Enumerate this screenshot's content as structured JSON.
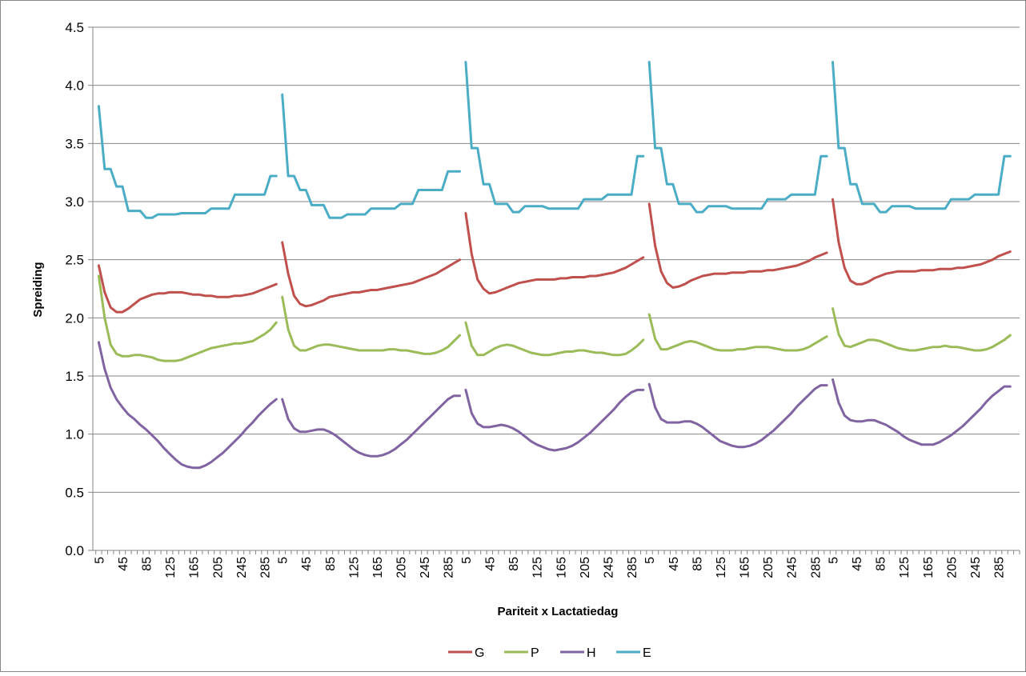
{
  "chart_data": {
    "type": "line",
    "title": "",
    "xlabel": "Pariteit x Lactatiedag",
    "ylabel": "Spreiding",
    "ylim": [
      0,
      4.5
    ],
    "yticks": [
      "0.0",
      "0.5",
      "1.0",
      "1.5",
      "2.0",
      "2.5",
      "3.0",
      "3.5",
      "4.0",
      "4.5"
    ],
    "x_tick_labels": [
      "5",
      "45",
      "85",
      "125",
      "165",
      "205",
      "245",
      "285"
    ],
    "grid": "horizontal",
    "legend_position": "bottom",
    "groups": 5,
    "days_per_group": [
      "5",
      "15",
      "25",
      "35",
      "45",
      "55",
      "65",
      "75",
      "85",
      "95",
      "105",
      "115",
      "125",
      "135",
      "145",
      "155",
      "165",
      "175",
      "185",
      "195",
      "205",
      "215",
      "225",
      "235",
      "245",
      "255",
      "265",
      "275",
      "285",
      "295",
      "305"
    ],
    "series": [
      {
        "name": "G",
        "color": "#c0504d",
        "segments": [
          [
            2.45,
            2.22,
            2.09,
            2.05,
            2.05,
            2.08,
            2.12,
            2.16,
            2.18,
            2.2,
            2.21,
            2.21,
            2.22,
            2.22,
            2.22,
            2.21,
            2.2,
            2.2,
            2.19,
            2.19,
            2.18,
            2.18,
            2.18,
            2.19,
            2.19,
            2.2,
            2.21,
            2.23,
            2.25,
            2.27,
            2.29
          ],
          [
            2.65,
            2.38,
            2.19,
            2.12,
            2.1,
            2.11,
            2.13,
            2.15,
            2.18,
            2.19,
            2.2,
            2.21,
            2.22,
            2.22,
            2.23,
            2.24,
            2.24,
            2.25,
            2.26,
            2.27,
            2.28,
            2.29,
            2.3,
            2.32,
            2.34,
            2.36,
            2.38,
            2.41,
            2.44,
            2.47,
            2.5
          ],
          [
            2.9,
            2.55,
            2.33,
            2.25,
            2.21,
            2.22,
            2.24,
            2.26,
            2.28,
            2.3,
            2.31,
            2.32,
            2.33,
            2.33,
            2.33,
            2.33,
            2.34,
            2.34,
            2.35,
            2.35,
            2.35,
            2.36,
            2.36,
            2.37,
            2.38,
            2.39,
            2.41,
            2.43,
            2.46,
            2.49,
            2.52
          ],
          [
            2.98,
            2.62,
            2.4,
            2.3,
            2.26,
            2.27,
            2.29,
            2.32,
            2.34,
            2.36,
            2.37,
            2.38,
            2.38,
            2.38,
            2.39,
            2.39,
            2.39,
            2.4,
            2.4,
            2.4,
            2.41,
            2.41,
            2.42,
            2.43,
            2.44,
            2.45,
            2.47,
            2.49,
            2.52,
            2.54,
            2.56
          ],
          [
            3.02,
            2.65,
            2.43,
            2.32,
            2.29,
            2.29,
            2.31,
            2.34,
            2.36,
            2.38,
            2.39,
            2.4,
            2.4,
            2.4,
            2.4,
            2.41,
            2.41,
            2.41,
            2.42,
            2.42,
            2.42,
            2.43,
            2.43,
            2.44,
            2.45,
            2.46,
            2.48,
            2.5,
            2.53,
            2.55,
            2.57
          ]
        ]
      },
      {
        "name": "P",
        "color": "#9bbb59",
        "segments": [
          [
            2.36,
            2.0,
            1.77,
            1.69,
            1.67,
            1.67,
            1.68,
            1.68,
            1.67,
            1.66,
            1.64,
            1.63,
            1.63,
            1.63,
            1.64,
            1.66,
            1.68,
            1.7,
            1.72,
            1.74,
            1.75,
            1.76,
            1.77,
            1.78,
            1.78,
            1.79,
            1.8,
            1.83,
            1.86,
            1.9,
            1.96
          ],
          [
            2.18,
            1.9,
            1.76,
            1.72,
            1.72,
            1.74,
            1.76,
            1.77,
            1.77,
            1.76,
            1.75,
            1.74,
            1.73,
            1.72,
            1.72,
            1.72,
            1.72,
            1.72,
            1.73,
            1.73,
            1.72,
            1.72,
            1.71,
            1.7,
            1.69,
            1.69,
            1.7,
            1.72,
            1.75,
            1.8,
            1.85
          ],
          [
            1.96,
            1.76,
            1.68,
            1.68,
            1.71,
            1.74,
            1.76,
            1.77,
            1.76,
            1.74,
            1.72,
            1.7,
            1.69,
            1.68,
            1.68,
            1.69,
            1.7,
            1.71,
            1.71,
            1.72,
            1.72,
            1.71,
            1.7,
            1.7,
            1.69,
            1.68,
            1.68,
            1.69,
            1.72,
            1.76,
            1.81
          ],
          [
            2.03,
            1.82,
            1.73,
            1.73,
            1.75,
            1.77,
            1.79,
            1.8,
            1.79,
            1.77,
            1.75,
            1.73,
            1.72,
            1.72,
            1.72,
            1.73,
            1.73,
            1.74,
            1.75,
            1.75,
            1.75,
            1.74,
            1.73,
            1.72,
            1.72,
            1.72,
            1.73,
            1.75,
            1.78,
            1.81,
            1.84
          ],
          [
            2.08,
            1.86,
            1.76,
            1.75,
            1.77,
            1.79,
            1.81,
            1.81,
            1.8,
            1.78,
            1.76,
            1.74,
            1.73,
            1.72,
            1.72,
            1.73,
            1.74,
            1.75,
            1.75,
            1.76,
            1.75,
            1.75,
            1.74,
            1.73,
            1.72,
            1.72,
            1.73,
            1.75,
            1.78,
            1.81,
            1.85
          ]
        ]
      },
      {
        "name": "H",
        "color": "#8064a2",
        "segments": [
          [
            1.79,
            1.56,
            1.4,
            1.3,
            1.23,
            1.17,
            1.13,
            1.08,
            1.04,
            0.99,
            0.94,
            0.88,
            0.83,
            0.78,
            0.74,
            0.72,
            0.71,
            0.71,
            0.73,
            0.76,
            0.8,
            0.84,
            0.89,
            0.94,
            0.99,
            1.05,
            1.1,
            1.16,
            1.21,
            1.26,
            1.3
          ],
          [
            1.3,
            1.13,
            1.05,
            1.02,
            1.02,
            1.03,
            1.04,
            1.04,
            1.02,
            0.99,
            0.95,
            0.91,
            0.87,
            0.84,
            0.82,
            0.81,
            0.81,
            0.82,
            0.84,
            0.87,
            0.91,
            0.95,
            1.0,
            1.05,
            1.1,
            1.15,
            1.2,
            1.25,
            1.3,
            1.33,
            1.33
          ],
          [
            1.38,
            1.18,
            1.09,
            1.06,
            1.06,
            1.07,
            1.08,
            1.07,
            1.05,
            1.02,
            0.98,
            0.94,
            0.91,
            0.89,
            0.87,
            0.86,
            0.87,
            0.88,
            0.9,
            0.93,
            0.97,
            1.01,
            1.06,
            1.11,
            1.16,
            1.21,
            1.27,
            1.32,
            1.36,
            1.38,
            1.38
          ],
          [
            1.43,
            1.23,
            1.13,
            1.1,
            1.1,
            1.1,
            1.11,
            1.11,
            1.09,
            1.06,
            1.02,
            0.98,
            0.94,
            0.92,
            0.9,
            0.89,
            0.89,
            0.9,
            0.92,
            0.95,
            0.99,
            1.03,
            1.08,
            1.13,
            1.18,
            1.24,
            1.29,
            1.34,
            1.39,
            1.42,
            1.42
          ],
          [
            1.47,
            1.27,
            1.16,
            1.12,
            1.11,
            1.11,
            1.12,
            1.12,
            1.1,
            1.08,
            1.05,
            1.02,
            0.98,
            0.95,
            0.93,
            0.91,
            0.91,
            0.91,
            0.93,
            0.96,
            0.99,
            1.03,
            1.07,
            1.12,
            1.17,
            1.22,
            1.28,
            1.33,
            1.37,
            1.41,
            1.41
          ]
        ]
      },
      {
        "name": "E",
        "color": "#4bacc6",
        "segments": [
          [
            3.82,
            3.28,
            3.28,
            3.13,
            3.13,
            2.92,
            2.92,
            2.92,
            2.86,
            2.86,
            2.89,
            2.89,
            2.89,
            2.89,
            2.9,
            2.9,
            2.9,
            2.9,
            2.9,
            2.94,
            2.94,
            2.94,
            2.94,
            3.06,
            3.06,
            3.06,
            3.06,
            3.06,
            3.06,
            3.22,
            3.22
          ],
          [
            3.92,
            3.22,
            3.22,
            3.1,
            3.1,
            2.97,
            2.97,
            2.97,
            2.86,
            2.86,
            2.86,
            2.89,
            2.89,
            2.89,
            2.89,
            2.94,
            2.94,
            2.94,
            2.94,
            2.94,
            2.98,
            2.98,
            2.98,
            3.1,
            3.1,
            3.1,
            3.1,
            3.1,
            3.26,
            3.26,
            3.26
          ],
          [
            4.2,
            3.46,
            3.46,
            3.15,
            3.15,
            2.98,
            2.98,
            2.98,
            2.91,
            2.91,
            2.96,
            2.96,
            2.96,
            2.96,
            2.94,
            2.94,
            2.94,
            2.94,
            2.94,
            2.94,
            3.02,
            3.02,
            3.02,
            3.02,
            3.06,
            3.06,
            3.06,
            3.06,
            3.06,
            3.39,
            3.39
          ],
          [
            4.2,
            3.46,
            3.46,
            3.15,
            3.15,
            2.98,
            2.98,
            2.98,
            2.91,
            2.91,
            2.96,
            2.96,
            2.96,
            2.96,
            2.94,
            2.94,
            2.94,
            2.94,
            2.94,
            2.94,
            3.02,
            3.02,
            3.02,
            3.02,
            3.06,
            3.06,
            3.06,
            3.06,
            3.06,
            3.39,
            3.39
          ],
          [
            4.2,
            3.46,
            3.46,
            3.15,
            3.15,
            2.98,
            2.98,
            2.98,
            2.91,
            2.91,
            2.96,
            2.96,
            2.96,
            2.96,
            2.94,
            2.94,
            2.94,
            2.94,
            2.94,
            2.94,
            3.02,
            3.02,
            3.02,
            3.02,
            3.06,
            3.06,
            3.06,
            3.06,
            3.06,
            3.39,
            3.39
          ]
        ]
      }
    ],
    "colors": {
      "border": "#868686",
      "grid": "#868686",
      "axis": "#868686"
    }
  }
}
